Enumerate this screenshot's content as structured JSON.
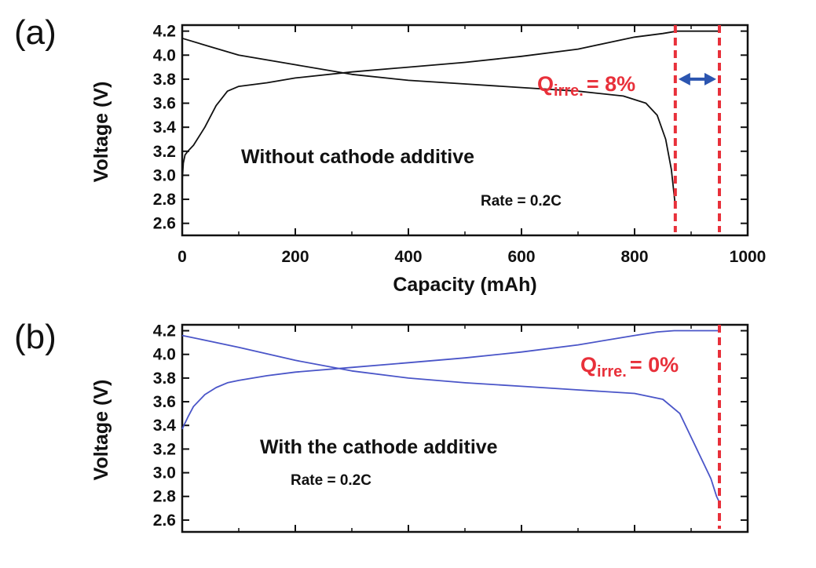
{
  "chart_data": [
    {
      "type": "line",
      "panel_label": "(a)",
      "xlabel": "Capacity (mAh)",
      "ylabel": "Voltage (V)",
      "xlim": [
        0,
        1000
      ],
      "ylim": [
        2.5,
        4.25
      ],
      "x_ticks": [
        0,
        200,
        400,
        600,
        800,
        1000
      ],
      "x_tick_labels": [
        "0",
        "200",
        "400",
        "600",
        "800",
        "1000"
      ],
      "y_ticks": [
        2.6,
        2.8,
        3.0,
        3.2,
        3.4,
        3.6,
        3.8,
        4.0,
        4.2
      ],
      "y_tick_labels": [
        "2.6",
        "2.8",
        "3.0",
        "3.2",
        "3.4",
        "3.6",
        "3.8",
        "4.0",
        "4.2"
      ],
      "line_color": "#111111",
      "series": [
        {
          "name": "charge",
          "x": [
            0,
            2,
            5,
            10,
            20,
            40,
            60,
            80,
            100,
            150,
            200,
            300,
            400,
            500,
            600,
            700,
            760,
            800,
            850,
            875,
            950
          ],
          "y": [
            2.95,
            3.1,
            3.17,
            3.2,
            3.25,
            3.4,
            3.58,
            3.7,
            3.74,
            3.77,
            3.81,
            3.86,
            3.9,
            3.94,
            3.99,
            4.05,
            4.11,
            4.15,
            4.18,
            4.2,
            4.2
          ]
        },
        {
          "name": "discharge",
          "x": [
            0,
            50,
            100,
            200,
            300,
            400,
            500,
            600,
            700,
            780,
            820,
            840,
            855,
            865,
            872
          ],
          "y": [
            4.14,
            4.07,
            4.0,
            3.92,
            3.84,
            3.79,
            3.76,
            3.73,
            3.7,
            3.66,
            3.6,
            3.5,
            3.3,
            3.05,
            2.75
          ]
        }
      ],
      "markers": {
        "dashed_lines_x": [
          872,
          950
        ],
        "dashed_color": "#e8303a",
        "arrow": {
          "x_from": 872,
          "x_to": 950,
          "y": 3.8,
          "color": "#2b55b0"
        }
      },
      "annotations": {
        "main": "Without cathode additive",
        "rate": "Rate = 0.2C",
        "q_main": "Q",
        "q_sub": "irre.",
        "q_value": "= 8%"
      }
    },
    {
      "type": "line",
      "panel_label": "(b)",
      "xlabel": "",
      "ylabel": "Voltage (V)",
      "xlim": [
        0,
        1000
      ],
      "ylim": [
        2.5,
        4.25
      ],
      "x_ticks": [
        0,
        200,
        400,
        600,
        800,
        1000
      ],
      "y_ticks": [
        2.6,
        2.8,
        3.0,
        3.2,
        3.4,
        3.6,
        3.8,
        4.0,
        4.2
      ],
      "y_tick_labels": [
        "2.6",
        "2.8",
        "3.0",
        "3.2",
        "3.4",
        "3.6",
        "3.8",
        "4.0",
        "4.2"
      ],
      "line_color": "#4a55c8",
      "series": [
        {
          "name": "charge",
          "x": [
            0,
            10,
            20,
            40,
            60,
            80,
            100,
            150,
            200,
            300,
            400,
            500,
            600,
            700,
            800,
            840,
            870,
            950
          ],
          "y": [
            3.37,
            3.47,
            3.56,
            3.66,
            3.72,
            3.76,
            3.78,
            3.82,
            3.85,
            3.89,
            3.93,
            3.97,
            4.02,
            4.08,
            4.16,
            4.19,
            4.2,
            4.2
          ]
        },
        {
          "name": "discharge",
          "x": [
            0,
            50,
            100,
            200,
            300,
            400,
            500,
            600,
            700,
            800,
            850,
            880,
            900,
            920,
            935,
            945,
            950
          ],
          "y": [
            4.16,
            4.11,
            4.06,
            3.95,
            3.86,
            3.8,
            3.76,
            3.73,
            3.7,
            3.67,
            3.62,
            3.5,
            3.3,
            3.1,
            2.95,
            2.8,
            2.75
          ]
        }
      ],
      "markers": {
        "dashed_lines_x": [
          950
        ],
        "dashed_color": "#e8303a"
      },
      "annotations": {
        "main": "With the cathode additive",
        "rate": "Rate = 0.2C",
        "q_main": "Q",
        "q_sub": "irre.",
        "q_value": "= 0%"
      }
    }
  ]
}
